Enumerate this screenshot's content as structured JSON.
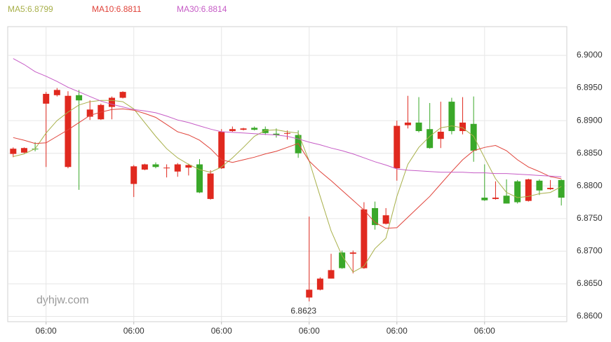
{
  "chart_data": {
    "type": "candlestick",
    "watermark": "dyhjw.com",
    "categories": [
      null,
      null,
      null,
      "06:00",
      null,
      null,
      null,
      null,
      null,
      null,
      null,
      "06:00",
      null,
      null,
      null,
      null,
      null,
      null,
      null,
      "06:00",
      null,
      null,
      null,
      null,
      null,
      null,
      null,
      "06:00",
      null,
      null,
      null,
      null,
      null,
      null,
      null,
      "06:00",
      null,
      null,
      null,
      null,
      null,
      null,
      null,
      "06:00",
      null,
      null,
      null,
      null,
      null,
      null,
      null
    ],
    "open": [
      6.8849,
      6.8851,
      6.8857,
      6.8926,
      6.8939,
      6.8829,
      6.8939,
      6.8906,
      6.8902,
      6.8921,
      6.8935,
      6.8803,
      6.8825,
      6.8833,
      6.8827,
      6.8822,
      6.8828,
      6.8833,
      6.878,
      6.8827,
      6.8884,
      6.8886,
      6.8889,
      6.8887,
      6.888,
      6.888,
      6.8878,
      6.8629,
      6.8641,
      6.8658,
      6.8698,
      6.8696,
      6.8674,
      6.8766,
      6.8742,
      6.8827,
      6.8893,
      6.8897,
      6.8887,
      6.8872,
      6.8929,
      6.8884,
      6.8895,
      6.8782,
      6.878,
      6.8785,
      6.8807,
      6.8777,
      6.8808,
      6.8795,
      6.8809
    ],
    "high": [
      6.8859,
      6.8859,
      6.8867,
      6.8944,
      6.895,
      6.8945,
      6.8947,
      6.8931,
      6.8926,
      6.8937,
      6.8945,
      6.8832,
      6.8834,
      6.8836,
      6.8833,
      6.8835,
      6.8834,
      6.8841,
      6.8824,
      6.8887,
      6.8891,
      6.8889,
      6.8891,
      6.8891,
      6.8888,
      6.8885,
      6.8885,
      6.8753,
      6.866,
      6.8696,
      6.8701,
      6.8701,
      6.8775,
      6.8776,
      6.8766,
      6.89,
      6.8938,
      6.8936,
      6.8927,
      6.8929,
      6.8935,
      6.8936,
      6.8937,
      6.8833,
      6.8807,
      6.881,
      6.8809,
      6.8811,
      6.881,
      6.8809,
      6.881
    ],
    "low": [
      6.8844,
      6.885,
      6.8853,
      6.8829,
      6.8937,
      6.8827,
      6.8794,
      6.8901,
      6.8901,
      6.8902,
      6.8934,
      6.8783,
      6.8824,
      6.8827,
      6.8813,
      6.8814,
      6.8816,
      6.8789,
      6.8779,
      6.8826,
      6.8883,
      6.8885,
      6.8885,
      6.8878,
      6.8874,
      6.8871,
      6.8843,
      6.8623,
      6.864,
      6.8658,
      6.8673,
      6.8666,
      6.8673,
      6.8733,
      6.8741,
      6.8808,
      6.8888,
      6.8882,
      6.8857,
      6.8858,
      6.8879,
      6.8879,
      6.8837,
      6.8777,
      6.8779,
      6.8773,
      6.8773,
      6.8776,
      6.8786,
      6.8794,
      6.877
    ],
    "close": [
      6.8857,
      6.8858,
      6.8856,
      6.8941,
      6.8947,
      6.8938,
      6.8931,
      6.8917,
      6.8924,
      6.8935,
      6.8944,
      6.883,
      6.8833,
      6.8829,
      6.8828,
      6.8833,
      6.8832,
      6.879,
      6.8819,
      6.8883,
      6.8887,
      6.8888,
      6.8886,
      6.8881,
      6.8878,
      6.8881,
      6.885,
      6.8641,
      6.8658,
      6.8671,
      6.8674,
      6.8698,
      6.8764,
      6.874,
      6.8755,
      6.8892,
      6.8897,
      6.8884,
      6.8858,
      6.8883,
      6.8884,
      6.8897,
      6.8854,
      6.8778,
      6.8782,
      6.8773,
      6.8775,
      6.881,
      6.8793,
      6.8797,
      6.8782
    ],
    "up_color": "#e0291f",
    "down_color": "#3aa829",
    "low_label_index": 27,
    "series": [
      {
        "name": "MA5:6.8799",
        "color": "#a8b04a",
        "values": [
          6.8845,
          6.8849,
          6.8857,
          6.8881,
          6.89,
          6.8913,
          6.8924,
          6.8929,
          6.8931,
          6.8931,
          6.8929,
          6.8918,
          6.8897,
          6.8876,
          6.8857,
          6.8843,
          6.8833,
          6.8825,
          6.8821,
          6.8829,
          6.8843,
          6.8859,
          6.8876,
          6.8885,
          6.8886,
          6.8883,
          6.8881,
          6.8838,
          6.8784,
          6.8731,
          6.8693,
          6.8668,
          6.8677,
          6.8704,
          6.872,
          6.8784,
          6.8833,
          6.8859,
          6.8876,
          6.8889,
          6.8892,
          6.8889,
          6.8876,
          6.8843,
          6.8811,
          6.879,
          6.8782,
          6.8784,
          6.8788,
          6.879,
          6.8799
        ]
      },
      {
        "name": "MA10:6.8811",
        "color": "#e0433a",
        "values": [
          6.8874,
          6.887,
          6.8865,
          6.8866,
          6.8876,
          6.8886,
          6.8897,
          6.8908,
          6.8913,
          6.8917,
          6.8918,
          6.8916,
          6.8911,
          6.8905,
          6.8894,
          6.8883,
          6.8878,
          6.887,
          6.8857,
          6.884,
          6.8836,
          6.884,
          6.8844,
          6.8849,
          6.8853,
          6.8859,
          6.8865,
          6.8838,
          6.8822,
          6.8808,
          6.8793,
          6.8778,
          6.8763,
          6.8744,
          6.8735,
          6.8736,
          6.8752,
          6.8768,
          6.8784,
          6.8803,
          6.8822,
          6.884,
          6.8854,
          6.8859,
          6.8862,
          6.8854,
          6.884,
          6.8829,
          6.8822,
          6.8814,
          6.8811
        ]
      },
      {
        "name": "MA30:6.8814",
        "color": "#c65cc6",
        "values": [
          6.8995,
          6.8986,
          6.8975,
          6.8968,
          6.896,
          6.8951,
          6.8944,
          6.8937,
          6.893,
          6.8925,
          6.8921,
          6.8917,
          6.8915,
          6.8912,
          6.8907,
          6.8901,
          6.8897,
          6.8892,
          6.8887,
          6.8883,
          6.8882,
          6.8881,
          6.888,
          6.8879,
          6.8878,
          6.8876,
          6.8872,
          6.8867,
          6.8863,
          6.8858,
          6.8854,
          6.8849,
          6.8843,
          6.8837,
          6.8832,
          6.8826,
          6.8824,
          6.8823,
          6.8822,
          6.8821,
          6.8821,
          6.8821,
          6.882,
          6.882,
          6.8819,
          6.8819,
          6.8818,
          6.8817,
          6.8816,
          6.8815,
          6.8814
        ]
      }
    ],
    "ylim": [
      6.8592,
      6.9044
    ],
    "yticks": [
      {
        "value": 6.86,
        "label": "6.8600"
      },
      {
        "value": 6.865,
        "label": "6.8650"
      },
      {
        "value": 6.87,
        "label": "6.8700"
      },
      {
        "value": 6.875,
        "label": "6.8750"
      },
      {
        "value": 6.88,
        "label": "6.8800"
      },
      {
        "value": 6.885,
        "label": "6.8850"
      },
      {
        "value": 6.89,
        "label": "6.8900"
      },
      {
        "value": 6.895,
        "label": "6.8950"
      },
      {
        "value": 6.9,
        "label": "6.9000"
      }
    ],
    "grid": true
  }
}
